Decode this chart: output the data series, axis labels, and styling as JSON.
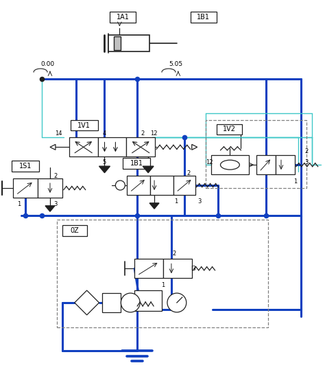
{
  "bg_color": "#ffffff",
  "blue": "#1040c0",
  "cyan": "#40c8c8",
  "dark": "#202020",
  "gray": "#808080",
  "lw_main": 2.2,
  "lw_thin": 1.0,
  "lw_sym": 0.9,
  "figsize": [
    4.74,
    5.42
  ],
  "dpi": 100,
  "xlim": [
    0,
    474
  ],
  "ylim": [
    0,
    542
  ]
}
